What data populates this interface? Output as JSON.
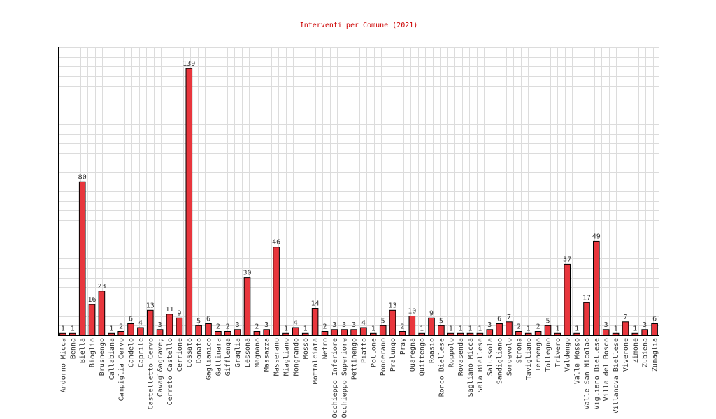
{
  "chart_data": {
    "type": "bar",
    "title": "Interventi per Comune (2021)",
    "xlabel": "",
    "ylabel": "",
    "ylim": [
      0,
      150
    ],
    "grid": true,
    "colors": {
      "bar": "#e8363d",
      "bar_edge": "#000000",
      "title": "#cc0000",
      "grid": "#dcdcdc"
    },
    "categories": [
      "Andorno Micca",
      "Benna",
      "Biella",
      "Bioglio",
      "Brusnengo",
      "Callabiana",
      "Campiglia Cervo",
      "Candelo",
      "Caprile",
      "Castelletto Cervo",
      "Cavagl&agrave;",
      "Cerreto Castello",
      "Cerrione",
      "Cossato",
      "Donato",
      "Gaglianico",
      "Gattinara",
      "Gifflenga",
      "Graglia",
      "Lessona",
      "Magnano",
      "Massazza",
      "Masserano",
      "Miagliano",
      "Mongrando",
      "Mosso",
      "Mottalciata",
      "Netro",
      "Occhieppo Inferiore",
      "Occhieppo Superiore",
      "Pettinengo",
      "Piatto",
      "Pollone",
      "Ponderano",
      "Pralungo",
      "Pray",
      "Quaregna",
      "Quittengo",
      "Roasio",
      "Ronco Biellese",
      "Roppolo",
      "Rovasenda",
      "Sagliano Micca",
      "Sala Biellese",
      "Salussola",
      "Sandigliano",
      "Sordevolo",
      "Strona",
      "Tavigliano",
      "Ternengo",
      "Tollegno",
      "Trivero",
      "Valdengo",
      "Valle Mosso",
      "Valle San Nicolao",
      "Vigliano Biellese",
      "Villa del Bosco",
      "Villanova Biellese",
      "Viverone",
      "Zimone",
      "Zubiena",
      "Zumaglia"
    ],
    "values": [
      1,
      1,
      80,
      16,
      23,
      1,
      2,
      6,
      4,
      13,
      3,
      11,
      9,
      139,
      5,
      6,
      2,
      2,
      3,
      30,
      2,
      3,
      46,
      1,
      4,
      1,
      14,
      2,
      3,
      3,
      3,
      4,
      1,
      5,
      13,
      2,
      10,
      1,
      9,
      5,
      1,
      1,
      1,
      1,
      3,
      6,
      7,
      2,
      1,
      2,
      5,
      1,
      37,
      1,
      17,
      49,
      3,
      1,
      7,
      1,
      3,
      6
    ]
  }
}
